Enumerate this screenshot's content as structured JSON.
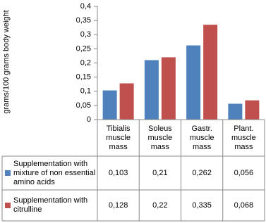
{
  "chart_data": {
    "type": "bar",
    "y_label": "grams/100 grams body weight",
    "categories": [
      "Tibialis muscle mass",
      "Soleus muscle mass",
      "Gastr. muscle mass",
      "Plant. muscle mass"
    ],
    "series": [
      {
        "name": "Supplementation with mixture of non essential amino acids",
        "color": "#4f81bd",
        "values": [
          0.103,
          0.21,
          0.262,
          0.056
        ],
        "value_labels": [
          "0,103",
          "0,21",
          "0,262",
          "0,056"
        ]
      },
      {
        "name": "Supplementation with citrulline",
        "color": "#c0504d",
        "values": [
          0.128,
          0.22,
          0.335,
          0.068
        ],
        "value_labels": [
          "0,128",
          "0,22",
          "0,335",
          "0,068"
        ]
      }
    ],
    "ylim": [
      0,
      0.4
    ],
    "yticks": [
      0,
      {
        "value": 0.05,
        "label": "0,05"
      },
      {
        "value": 0.1,
        "label": "0,1"
      },
      {
        "value": 0.15,
        "label": "0,15"
      },
      {
        "value": 0.2,
        "label": "0,2"
      },
      {
        "value": 0.25,
        "label": "0,25"
      },
      {
        "value": 0.3,
        "label": "0,3"
      },
      {
        "value": 0.35,
        "label": "0,35"
      },
      {
        "value": 0.4,
        "label": "0,4"
      }
    ]
  }
}
